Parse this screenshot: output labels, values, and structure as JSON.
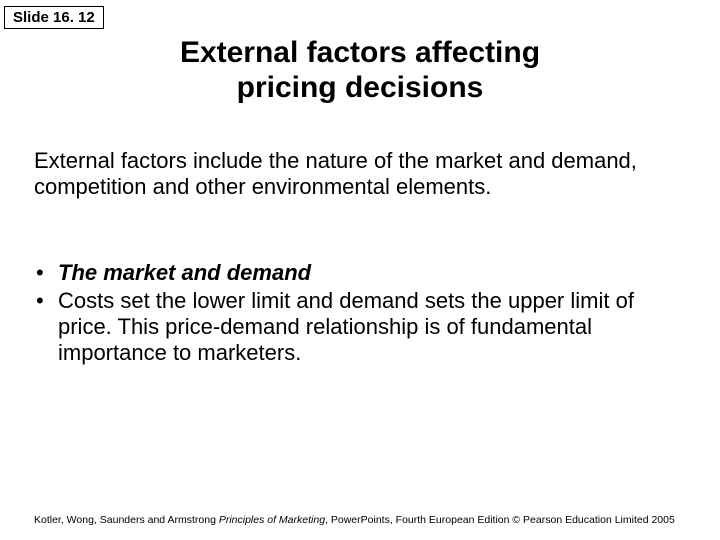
{
  "slide_number": "Slide 16. 12",
  "title_line1": "External factors affecting",
  "title_line2": "pricing decisions",
  "intro": "External factors include the nature of the market and demand, competition and other environmental elements.",
  "bullet1": "The market and demand",
  "bullet2": "Costs set the lower limit and demand sets the upper limit of price. This price-demand relationship is of fundamental importance to marketers.",
  "footer_authors": "Kotler, Wong, Saunders and Armstrong ",
  "footer_book": "Principles of Marketing",
  "footer_rest": ", PowerPoints, Fourth European Edition © Pearson Education Limited 2005",
  "colors": {
    "text": "#000000",
    "background": "#ffffff",
    "border": "#000000"
  },
  "fonts": {
    "title_size": 30,
    "body_size": 22,
    "slidenum_size": 15,
    "footer_size": 10.5
  }
}
